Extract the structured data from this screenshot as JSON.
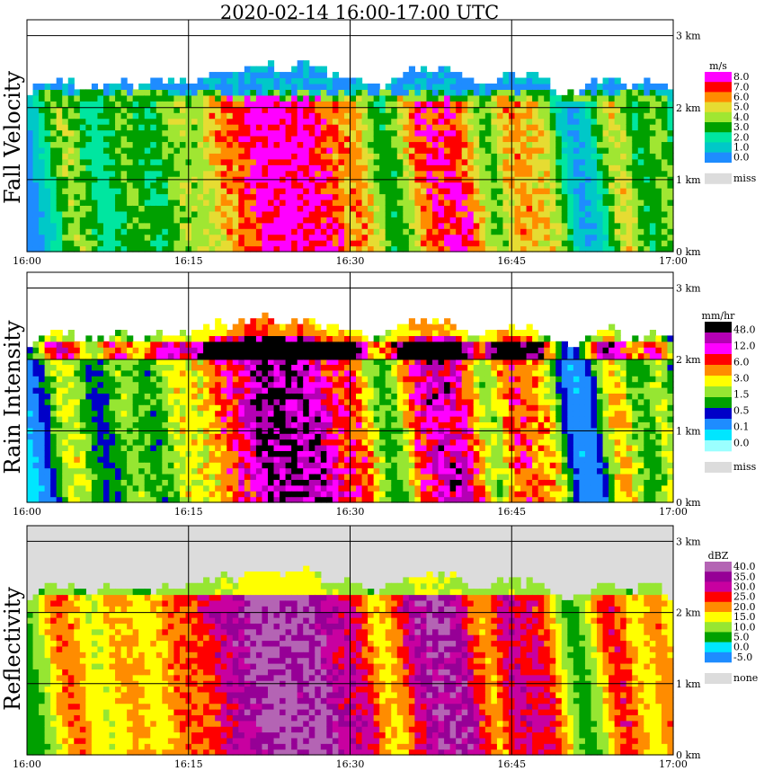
{
  "title": "2020-02-14   16:00-17:00 UTC",
  "colors": {
    "missing": "#dcdcdc",
    "fall_velocity": [
      "#0000dc",
      "#1e8cff",
      "#00c8c8",
      "#00e6a0",
      "#00a000",
      "#a0e632",
      "#e6dc32",
      "#ff8c00",
      "#ff0000",
      "#ff00ff"
    ],
    "rain_intensity": [
      "#ffffff",
      "#9bffff",
      "#00e6ff",
      "#1e8cff",
      "#0000c8",
      "#00a000",
      "#96e632",
      "#ffff00",
      "#ff8c00",
      "#ff0000",
      "#ff00ff",
      "#b400b4",
      "#000000"
    ],
    "reflectivity": [
      "#0000c8",
      "#1e8cff",
      "#00e6ff",
      "#00a000",
      "#96e632",
      "#ffff00",
      "#ff8c00",
      "#ff0000",
      "#c800a0",
      "#960096",
      "#b464b4"
    ]
  },
  "chart_data": [
    {
      "type": "heatmap",
      "title": "Fall Velocity",
      "x_ticks": [
        "16:00",
        "16:15",
        "16:30",
        "16:45",
        "17:00"
      ],
      "y_ticks": [
        "0 km",
        "1 km",
        "2 km",
        "3 km"
      ],
      "xlim": [
        "16:00",
        "17:00"
      ],
      "ylim_km": [
        0,
        3
      ],
      "grid": true,
      "legend": {
        "unit": "m/s",
        "labels": [
          "8.0",
          "7.0",
          "6.0",
          "5.0",
          "4.0",
          "3.0",
          "2.0",
          "1.0",
          "0.0"
        ],
        "missing_label": "miss"
      },
      "melting_layer_km": 2.0
    },
    {
      "type": "heatmap",
      "title": "Rain Intensity",
      "x_ticks": [
        "16:00",
        "16:15",
        "16:30",
        "16:45",
        "17:00"
      ],
      "y_ticks": [
        "0 km",
        "1 km",
        "2 km",
        "3 km"
      ],
      "xlim": [
        "16:00",
        "17:00"
      ],
      "ylim_km": [
        0,
        3
      ],
      "grid": true,
      "legend": {
        "unit": "mm/hr",
        "labels": [
          "48.0",
          "12.0",
          "6.0",
          "3.0",
          "1.5",
          "0.5",
          "0.1",
          "0.0"
        ],
        "missing_label": "miss"
      },
      "melting_layer_km": 2.0
    },
    {
      "type": "heatmap",
      "title": "Reflectivity",
      "x_ticks": [
        "16:00",
        "16:15",
        "16:30",
        "16:45",
        "17:00"
      ],
      "y_ticks": [
        "0 km",
        "1 km",
        "2 km",
        "3 km"
      ],
      "xlim": [
        "16:00",
        "17:00"
      ],
      "ylim_km": [
        0,
        3
      ],
      "grid": true,
      "legend": {
        "unit": "dBZ",
        "labels": [
          "40.0",
          "35.0",
          "30.0",
          "25.0",
          "20.0",
          "15.0",
          "10.0",
          "5.0",
          "0.0",
          "-5.0"
        ],
        "missing_label": "none"
      },
      "melting_layer_km": 2.0
    }
  ]
}
